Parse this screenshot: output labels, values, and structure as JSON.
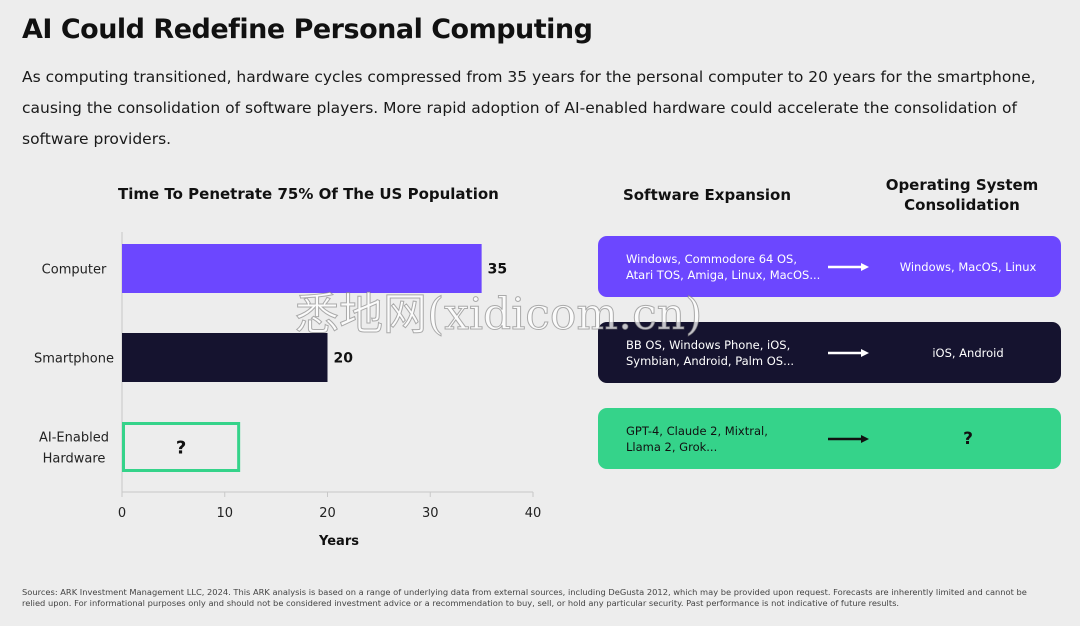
{
  "header": {
    "title": "AI Could Redefine Personal Computing",
    "subtitle": "As computing transitioned, hardware cycles compressed from 35 years for the personal computer to 20 years for the smartphone, causing the consolidation of software players. More rapid adoption of AI-enabled hardware could accelerate the consolidation of software providers."
  },
  "chart_data": {
    "type": "bar",
    "orientation": "horizontal",
    "title": "Time To Penetrate 75% Of The US Population",
    "xlabel": "Years",
    "ylabel": "",
    "xlim": [
      0,
      40
    ],
    "xticks": [
      "0",
      "10",
      "20",
      "30",
      "40"
    ],
    "categories": [
      "Computer",
      "Smartphone",
      "AI-Enabled Hardware"
    ],
    "values": [
      35,
      20,
      null
    ],
    "data_labels": [
      "35",
      "20",
      "?"
    ],
    "colors": [
      "#6c47ff",
      "#15132f",
      "#35d38a"
    ],
    "grid": false,
    "note": "AI-Enabled Hardware shown as outlined box with unknown value"
  },
  "software": {
    "col_expansion": "Software Expansion",
    "col_consolidation": "Operating System Consolidation",
    "rows": [
      {
        "left": "Windows, Commodore 64 OS, Atari TOS, Amiga, Linux, MacOS...",
        "right": "Windows, MacOS, Linux",
        "bg": "#6c47ff",
        "fg": "#ffffff"
      },
      {
        "left": "BB OS, Windows Phone, iOS, Symbian, Android, Palm OS...",
        "right": "iOS, Android",
        "bg": "#15132f",
        "fg": "#ffffff"
      },
      {
        "left": "GPT-4, Claude 2, Mixtral, Llama 2, Grok...",
        "right": "?",
        "bg": "#35d38a",
        "fg": "#111111"
      }
    ]
  },
  "footer": {
    "sources": "Sources: ARK Investment Management LLC, 2024. This ARK analysis is based on a range of underlying data from external sources, including DeGusta 2012, which may be provided upon request. Forecasts are inherently limited and cannot be relied upon. For informational purposes only and should not be considered investment advice or a recommendation to buy, sell, or hold any particular security. Past performance is not indicative of future results."
  },
  "watermark": "悉地网(xidicom.cn)"
}
